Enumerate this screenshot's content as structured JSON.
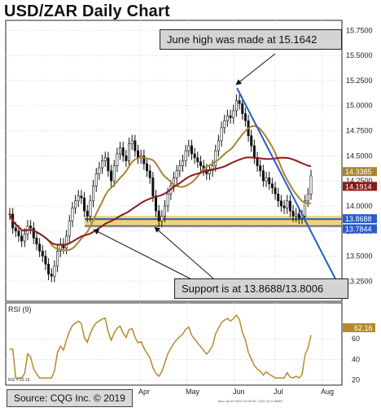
{
  "title": "USD/ZAR Daily Chart",
  "annotations": {
    "june_high": "June high was made at 15.1642",
    "support": "Support is at 13.8688/13.8006"
  },
  "source": "Source: CQG Inc. © 2019",
  "footnote": "Mon Jul 29 2019 10:25:30, CQG 19.12.8080",
  "colors": {
    "candles": "#111111",
    "ma_short": "#a8842e",
    "ma_long": "#8b1a1a",
    "trendline": "#2a5cc8",
    "support_band": "#f2d27a",
    "support_line": "#2a5cc8",
    "rsi": "#b58a2c"
  },
  "chart_data": {
    "type": "candlestick",
    "x_labels": [
      "Apr",
      "May",
      "Jun",
      "Jul",
      "Aug"
    ],
    "y_ticks": [
      "15.7500",
      "15.5000",
      "15.2500",
      "15.0000",
      "14.7500",
      "14.5000",
      "14.2500",
      "14.0000",
      "13.7500",
      "13.5000",
      "13.2500"
    ],
    "ylim": [
      13.05,
      15.85
    ],
    "price_tags": [
      {
        "label": "14.3385",
        "color": "#a8842e"
      },
      {
        "label": "14.1914",
        "color": "#8b1a1a"
      },
      {
        "label": "13.8688",
        "color": "#2a5cc8"
      },
      {
        "label": "13.7844",
        "color": "#2a5cc8"
      }
    ],
    "june_high": 15.1642,
    "support_levels": [
      13.8688,
      13.8006
    ],
    "rsi": {
      "label": "RSI (9)",
      "current": "62.16",
      "start_label": "RSI = 62.16",
      "y_ticks": [
        "60",
        "40",
        "20"
      ],
      "ylim": [
        15,
        95
      ]
    },
    "closes": [
      13.92,
      13.78,
      13.75,
      13.7,
      13.65,
      13.72,
      13.8,
      13.78,
      13.68,
      13.62,
      13.55,
      13.5,
      13.42,
      13.32,
      13.3,
      13.4,
      13.55,
      13.62,
      13.58,
      13.7,
      13.85,
      13.98,
      14.05,
      14.1,
      14.08,
      13.95,
      13.9,
      14.05,
      14.2,
      14.32,
      14.38,
      14.45,
      14.48,
      14.35,
      14.25,
      14.4,
      14.52,
      14.58,
      14.5,
      14.45,
      14.62,
      14.65,
      14.55,
      14.48,
      14.5,
      14.42,
      14.35,
      14.28,
      14.1,
      13.95,
      13.85,
      13.9,
      14.0,
      14.12,
      14.2,
      14.28,
      14.35,
      14.4,
      14.45,
      14.55,
      14.6,
      14.52,
      14.48,
      14.44,
      14.4,
      14.36,
      14.32,
      14.35,
      14.4,
      14.55,
      14.65,
      14.78,
      14.85,
      14.9,
      14.88,
      14.95,
      15.05,
      15.02,
      14.92,
      14.85,
      14.7,
      14.6,
      14.48,
      14.4,
      14.35,
      14.25,
      14.28,
      14.22,
      14.18,
      14.12,
      14.05,
      14.0,
      13.98,
      14.05,
      13.95,
      13.9,
      13.92,
      13.88,
      13.9,
      14.05,
      14.12,
      14.3
    ]
  }
}
